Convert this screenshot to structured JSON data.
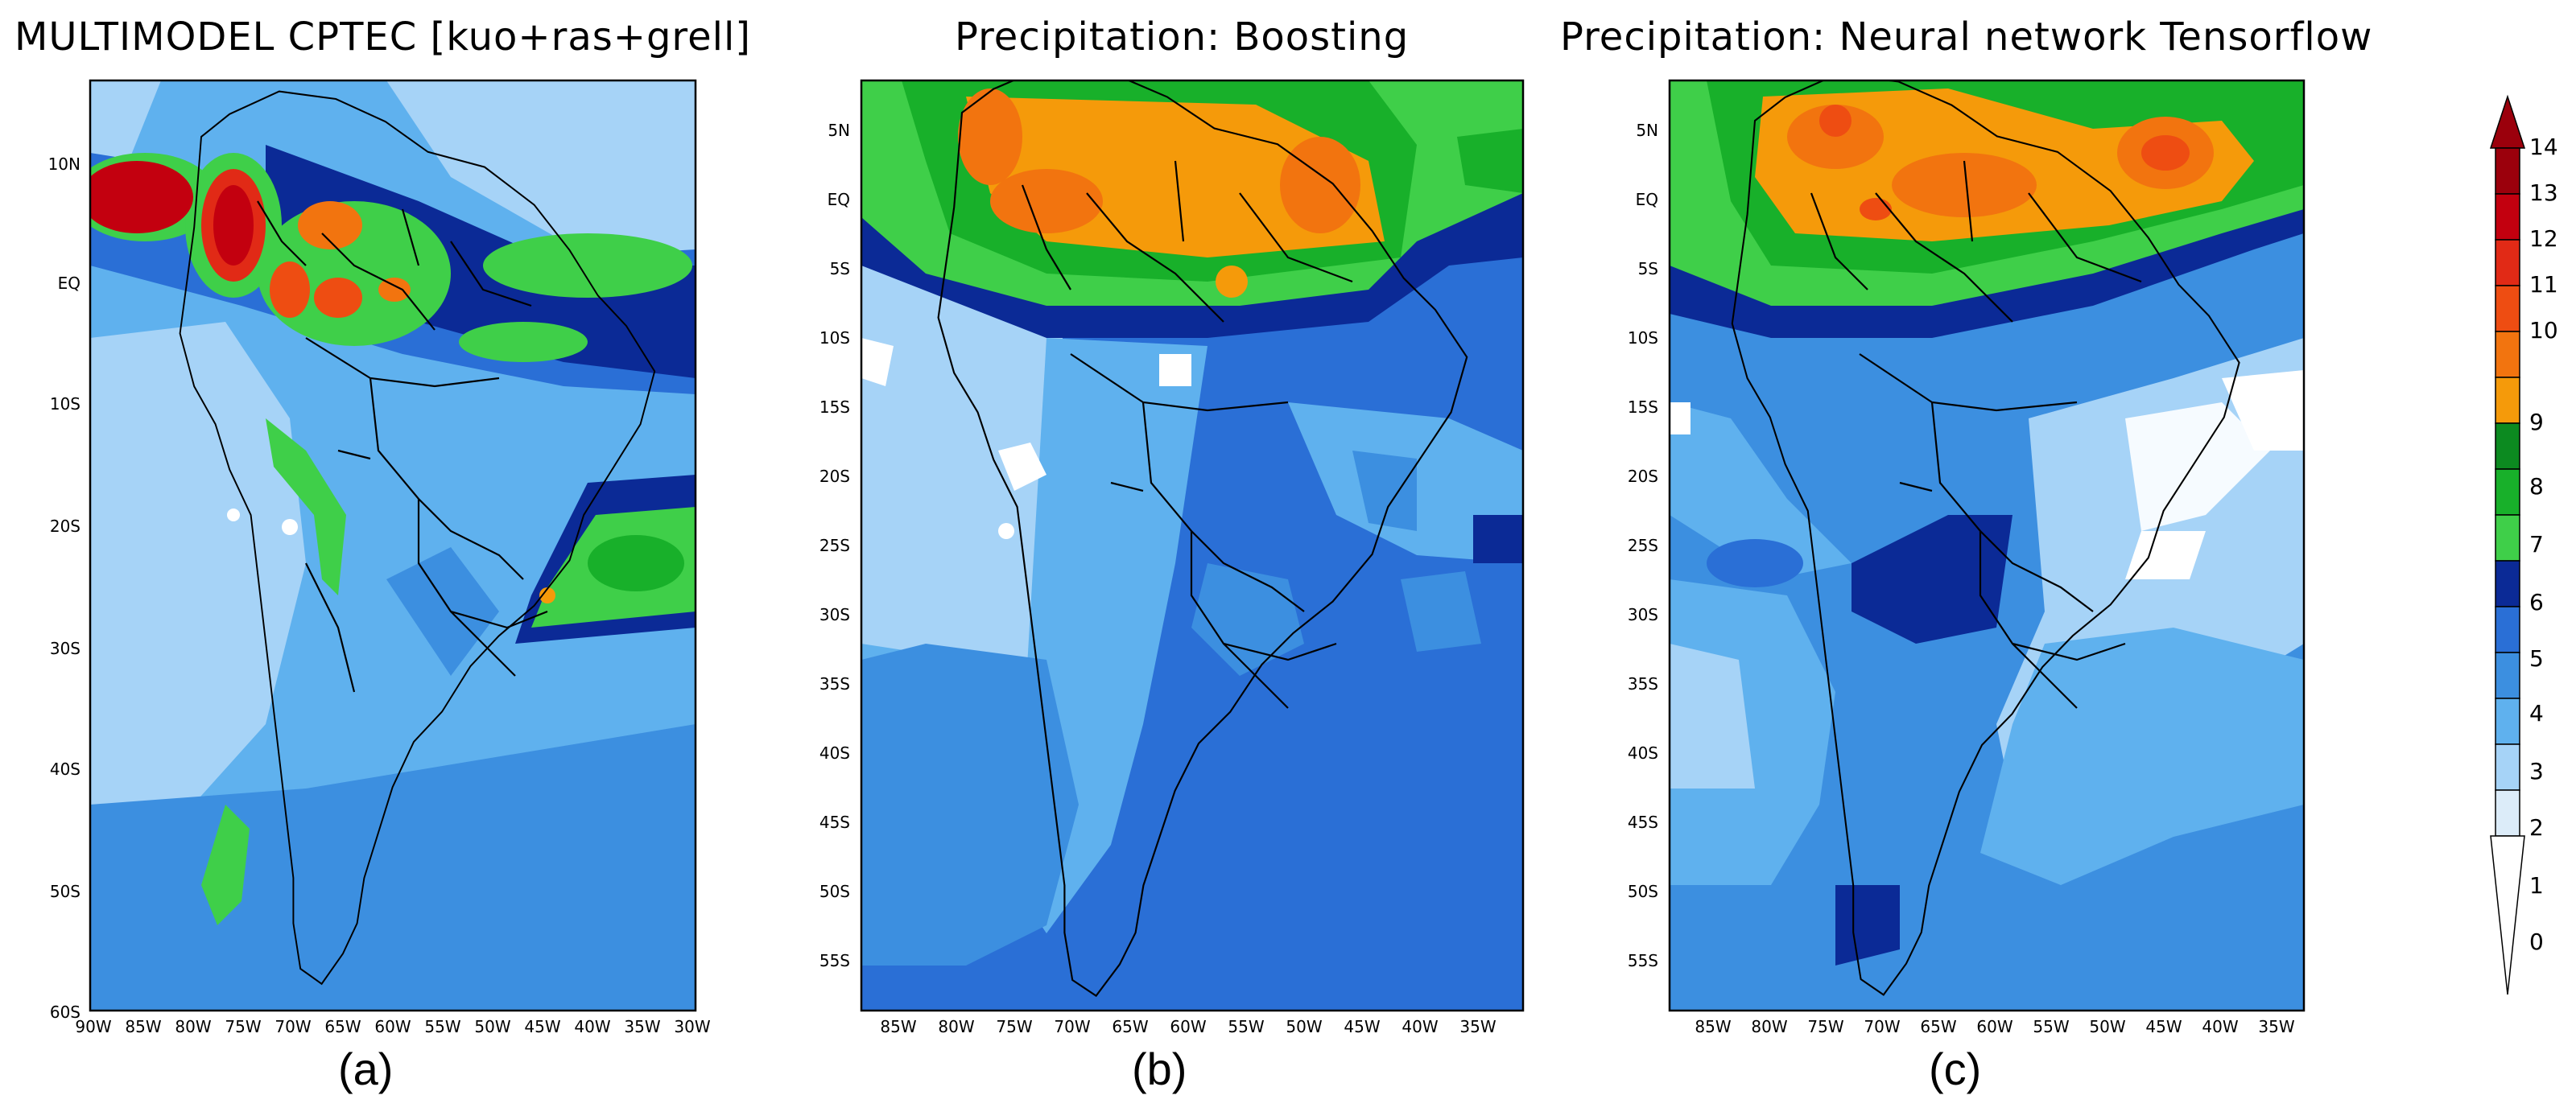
{
  "colors": {
    "c0": "#ffffff",
    "c1": "#a6d3f7",
    "c2": "#5fb1ee",
    "c3": "#3c8fe0",
    "c4": "#2a6fd6",
    "c5": "#0b2a96",
    "c6": "#3fcf49",
    "c7": "#18b02a",
    "c8": "#0c8a20",
    "c9": "#f59a0a",
    "c10": "#f2740f",
    "c11": "#ee4d12",
    "c12": "#e12a16",
    "c13": "#c3000f",
    "c14": "#9b000c",
    "land_line": "#000000"
  },
  "panels": [
    {
      "title": "MULTIMODEL CPTEC [kuo+ras+grell]",
      "label": "(a)",
      "y_ticks": [
        "10N",
        "EQ",
        "10S",
        "20S",
        "30S",
        "40S",
        "50S",
        "60S"
      ],
      "x_ticks": [
        "90W",
        "85W",
        "80W",
        "75W",
        "70W",
        "65W",
        "60W",
        "55W",
        "50W",
        "45W",
        "40W",
        "35W",
        "30W"
      ]
    },
    {
      "title": "Precipitation: Boosting",
      "label": "(b)",
      "y_ticks": [
        "5N",
        "EQ",
        "5S",
        "10S",
        "15S",
        "20S",
        "25S",
        "30S",
        "35S",
        "40S",
        "45S",
        "50S",
        "55S"
      ],
      "x_ticks": [
        "85W",
        "80W",
        "75W",
        "70W",
        "65W",
        "60W",
        "55W",
        "50W",
        "45W",
        "40W",
        "35W"
      ]
    },
    {
      "title": "Precipitation: Neural network Tensorflow",
      "label": "(c)",
      "y_ticks": [
        "5N",
        "EQ",
        "5S",
        "10S",
        "15S",
        "20S",
        "25S",
        "30S",
        "35S",
        "40S",
        "45S",
        "50S",
        "55S"
      ],
      "x_ticks": [
        "85W",
        "80W",
        "75W",
        "70W",
        "65W",
        "60W",
        "55W",
        "50W",
        "45W",
        "40W",
        "35W"
      ]
    }
  ],
  "colorbar": {
    "ticks": [
      "14",
      "13",
      "12",
      "11",
      "10",
      "9",
      "8",
      "7",
      "6",
      "5",
      "4",
      "3",
      "2",
      "1",
      "0"
    ]
  }
}
